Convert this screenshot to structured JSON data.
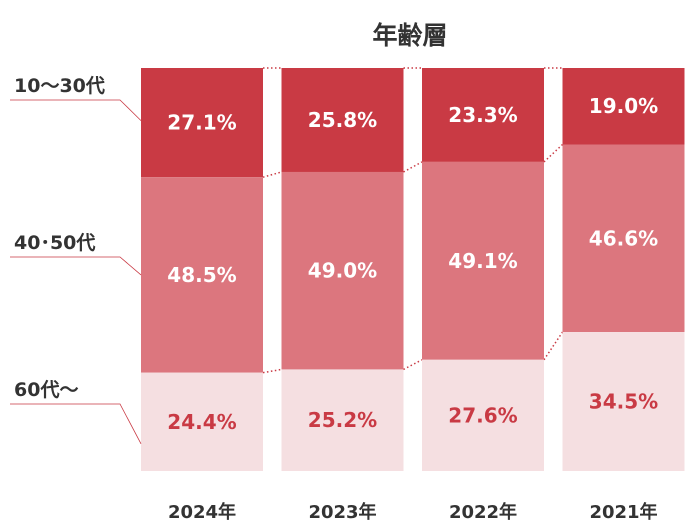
{
  "chart_data": {
    "type": "bar",
    "stacked": true,
    "percent_stacked": true,
    "title": "年齢層",
    "categories": [
      "2024年",
      "2023年",
      "2022年",
      "2021年"
    ],
    "series": [
      {
        "name": "10〜30代",
        "values": [
          27.1,
          25.8,
          23.3,
          19.0
        ],
        "labels": [
          "27.1%",
          "25.8%",
          "23.3%",
          "19.0%"
        ],
        "color": "#c93a44",
        "label_color": "#ffffff"
      },
      {
        "name": "40･50代",
        "values": [
          48.5,
          49.0,
          49.1,
          46.6
        ],
        "labels": [
          "48.5%",
          "49.0%",
          "49.1%",
          "46.6%"
        ],
        "color": "#dc767e",
        "label_color": "#ffffff"
      },
      {
        "name": "60代〜",
        "values": [
          24.4,
          25.2,
          27.6,
          34.5
        ],
        "labels": [
          "24.4%",
          "25.2%",
          "27.6%",
          "34.5%"
        ],
        "color": "#f5dfe1",
        "label_color": "#c93a44"
      }
    ],
    "ylim": [
      0,
      100
    ],
    "grid": false,
    "legend": "left",
    "connector_color": "#c93a44"
  }
}
